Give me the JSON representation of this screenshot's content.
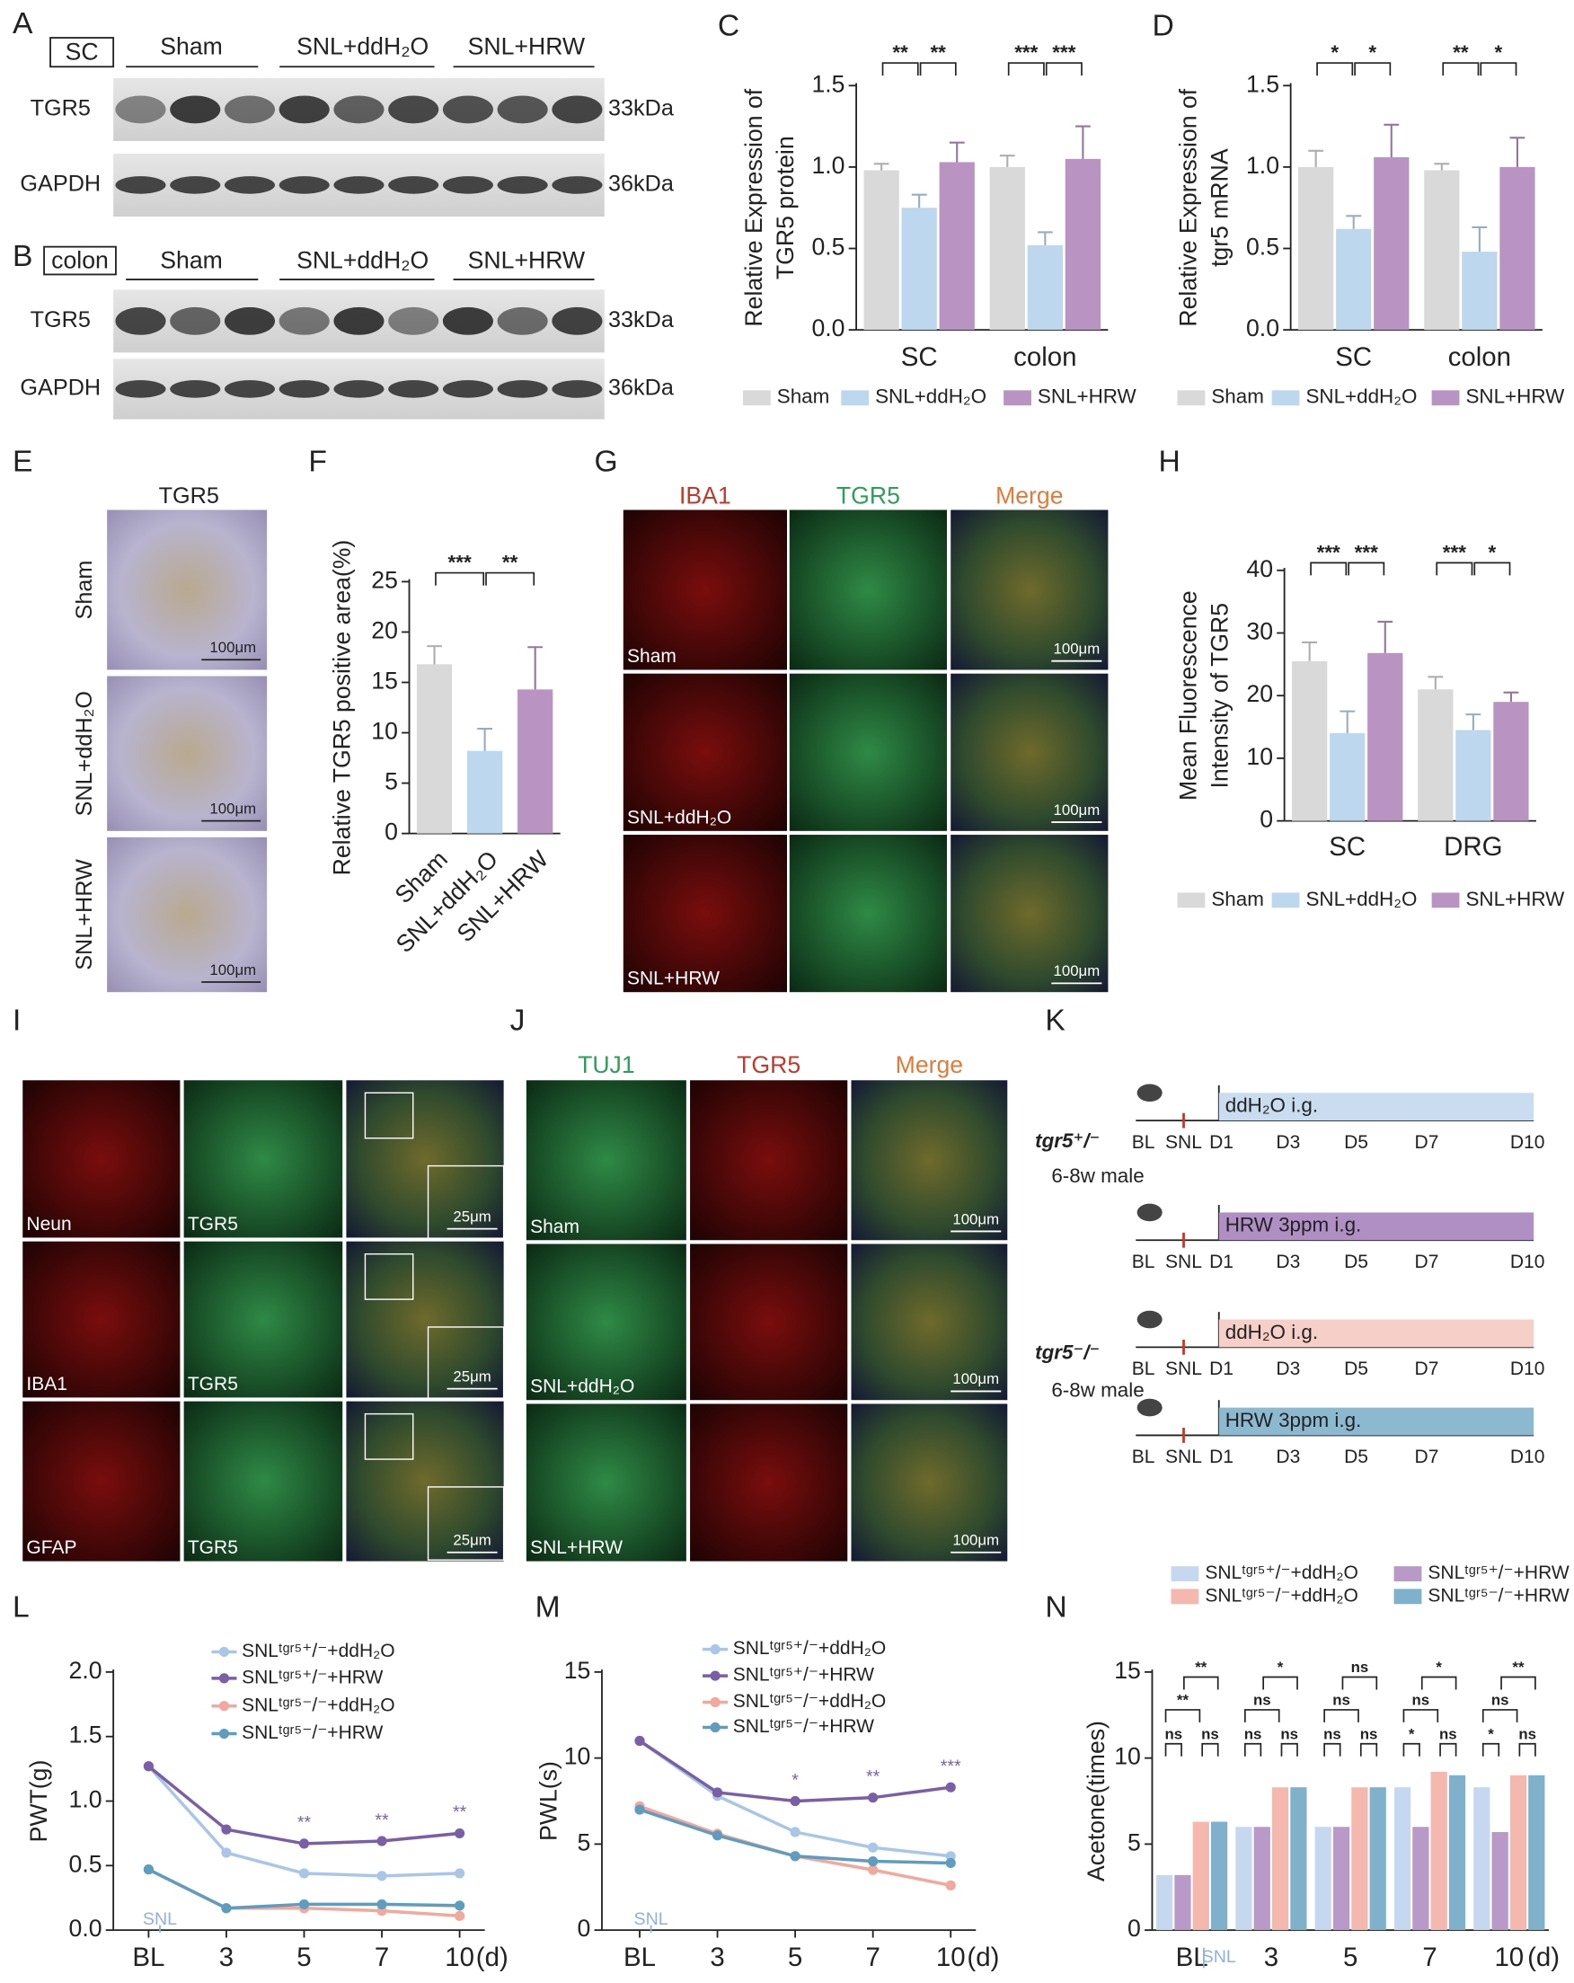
{
  "blots": [
    {
      "panel": "A",
      "tissue": "SC",
      "groups": [
        "Sham",
        "SNL+ddH₂O",
        "SNL+HRW"
      ],
      "rows": [
        {
          "protein": "TGR5",
          "size": "33kDa"
        },
        {
          "protein": "GAPDH",
          "size": "36kDa"
        }
      ]
    },
    {
      "panel": "B",
      "tissue": "colon",
      "groups": [
        "Sham",
        "SNL+ddH₂O",
        "SNL+HRW"
      ],
      "rows": [
        {
          "protein": "TGR5",
          "size": "33kDa"
        },
        {
          "protein": "GAPDH",
          "size": "36kDa"
        }
      ]
    }
  ],
  "ihc": {
    "panel": "E",
    "title": "TGR5",
    "rows": [
      "Sham",
      "SNL+ddH₂O",
      "SNL+HRW"
    ],
    "scale": "100μm"
  },
  "if_g": {
    "panel": "G",
    "columns": [
      "IBA1",
      "TGR5",
      "Merge"
    ],
    "rows": [
      "Sham",
      "SNL+ddH₂O",
      "SNL+HRW"
    ],
    "scale": "100μm"
  },
  "if_i": {
    "panel": "I",
    "rows": [
      {
        "markers": [
          "Neun",
          "TGR5"
        ]
      },
      {
        "markers": [
          "IBA1",
          "TGR5"
        ]
      },
      {
        "markers": [
          "GFAP",
          "TGR5"
        ]
      }
    ],
    "scale": "25μm"
  },
  "if_j": {
    "panel": "J",
    "columns": [
      "TUJ1",
      "TGR5",
      "Merge"
    ],
    "rows": [
      "Sham",
      "SNL+ddH₂O",
      "SNL+HRW"
    ],
    "scale": "100μm"
  },
  "timeline": {
    "panel": "K",
    "ticks": [
      "BL",
      "SNL",
      "D1",
      "D3",
      "D5",
      "D7",
      "D10"
    ],
    "cohorts": [
      {
        "genotype": "tgr5⁺/⁻",
        "age": "6-8w  male",
        "arms": [
          {
            "label": "ddH₂O i.g.",
            "color": "#c9dcf0"
          },
          {
            "label": "HRW 3ppm i.g.",
            "color": "#b08fc4"
          }
        ]
      },
      {
        "genotype": "tgr5⁻/⁻",
        "age": "6-8w  male",
        "arms": [
          {
            "label": "ddH₂O i.g.",
            "color": "#f6cfc8"
          },
          {
            "label": "HRW 3ppm  i.g.",
            "color": "#8db9d0"
          }
        ]
      }
    ]
  },
  "chart_data": [
    {
      "type": "bar",
      "panel": "C",
      "ylabel": [
        "Relative Expression of",
        "TGR5 protein"
      ],
      "categories": [
        "SC",
        "colon"
      ],
      "series": [
        {
          "name": "Sham",
          "color": "#d9d9d9",
          "values": [
            0.98,
            1.0
          ],
          "errors": [
            0.04,
            0.07
          ]
        },
        {
          "name": "SNL+ddH₂O",
          "color": "#bdd7ee",
          "values": [
            0.75,
            0.52
          ],
          "errors": [
            0.08,
            0.08
          ]
        },
        {
          "name": "SNL+HRW",
          "color": "#b994c3",
          "values": [
            1.03,
            1.05
          ],
          "errors": [
            0.12,
            0.2
          ]
        }
      ],
      "ylim": [
        0,
        1.5
      ],
      "yticks": [
        {
          "value": 0,
          "label": "0.0"
        },
        0.5,
        {
          "value": 1,
          "label": "1.0"
        },
        1.5
      ],
      "significance": [
        {
          "text": "**",
          "group": 0,
          "pair": [
            0,
            1
          ]
        },
        {
          "text": "**",
          "group": 0,
          "pair": [
            1,
            2
          ]
        },
        {
          "text": "***",
          "group": 1,
          "pair": [
            0,
            1
          ]
        },
        {
          "text": "***",
          "group": 1,
          "pair": [
            1,
            2
          ]
        }
      ]
    },
    {
      "type": "bar",
      "panel": "D",
      "ylabel": [
        "Relative Expression of",
        "tgr5 mRNA"
      ],
      "categories": [
        "SC",
        "colon"
      ],
      "series": [
        {
          "name": "Sham",
          "color": "#d9d9d9",
          "values": [
            1.0,
            0.98
          ],
          "errors": [
            0.1,
            0.04
          ]
        },
        {
          "name": "SNL+ddH₂O",
          "color": "#bdd7ee",
          "values": [
            0.62,
            0.48
          ],
          "errors": [
            0.08,
            0.15
          ]
        },
        {
          "name": "SNL+HRW",
          "color": "#b994c3",
          "values": [
            1.06,
            1.0
          ],
          "errors": [
            0.2,
            0.18
          ]
        }
      ],
      "ylim": [
        0,
        1.5
      ],
      "yticks": [
        {
          "value": 0,
          "label": "0.0"
        },
        0.5,
        {
          "value": 1,
          "label": "1.0"
        },
        1.5
      ],
      "significance": [
        {
          "text": "*",
          "group": 0,
          "pair": [
            0,
            1
          ]
        },
        {
          "text": "*",
          "group": 0,
          "pair": [
            1,
            2
          ]
        },
        {
          "text": "**",
          "group": 1,
          "pair": [
            0,
            1
          ]
        },
        {
          "text": "*",
          "group": 1,
          "pair": [
            1,
            2
          ]
        }
      ]
    },
    {
      "type": "bar",
      "panel": "F",
      "ylabel": [
        "Relative TGR5 positive area(%)"
      ],
      "categories": [
        "Sham",
        "SNL+ddH₂O",
        "SNL+HRW"
      ],
      "values": [
        16.8,
        8.2,
        14.3
      ],
      "errors": [
        1.8,
        2.2,
        4.2
      ],
      "colors": [
        "#d9d9d9",
        "#bdd7ee",
        "#b994c3"
      ],
      "ylim": [
        0,
        25
      ],
      "yticks": [
        0,
        5,
        10,
        15,
        20,
        25
      ],
      "significance": [
        {
          "text": "***",
          "pair": [
            0,
            1
          ]
        },
        {
          "text": "**",
          "pair": [
            1,
            2
          ]
        }
      ]
    },
    {
      "type": "bar",
      "panel": "H",
      "ylabel": [
        "Mean Fluorescence",
        "Intensity of TGR5"
      ],
      "categories": [
        "SC",
        "DRG"
      ],
      "series": [
        {
          "name": "Sham",
          "color": "#d9d9d9",
          "values": [
            25.5,
            21
          ],
          "errors": [
            3,
            2
          ]
        },
        {
          "name": "SNL+ddH₂O",
          "color": "#bdd7ee",
          "values": [
            14,
            14.5
          ],
          "errors": [
            3.5,
            2.5
          ]
        },
        {
          "name": "SNL+HRW",
          "color": "#b994c3",
          "values": [
            26.8,
            19
          ],
          "errors": [
            5,
            1.5
          ]
        }
      ],
      "ylim": [
        0,
        40
      ],
      "yticks": [
        0,
        10,
        20,
        30,
        40
      ],
      "significance": [
        {
          "text": "***",
          "group": 0,
          "pair": [
            0,
            1
          ]
        },
        {
          "text": "***",
          "group": 0,
          "pair": [
            1,
            2
          ]
        },
        {
          "text": "***",
          "group": 1,
          "pair": [
            0,
            1
          ]
        },
        {
          "text": "*",
          "group": 1,
          "pair": [
            1,
            2
          ]
        }
      ]
    },
    {
      "type": "line",
      "panel": "L",
      "ylabel": [
        "PWT(g)"
      ],
      "categories": [
        "BL",
        "3",
        "5",
        "7",
        "10"
      ],
      "xunit": "(d)",
      "marker_label": "SNL",
      "series": [
        {
          "name": "SNLᵗᵍʳ⁵⁺/⁻+ddH₂O",
          "color": "#a9c6e8",
          "values": [
            1.27,
            0.6,
            0.44,
            0.42,
            0.44
          ]
        },
        {
          "name": "SNLᵗᵍʳ⁵⁺/⁻+HRW",
          "color": "#7a5fa6",
          "values": [
            1.27,
            0.78,
            0.67,
            0.69,
            0.75
          ]
        },
        {
          "name": "SNLᵗᵍʳ⁵⁻/⁻+ddH₂O",
          "color": "#f2a89c",
          "values": [
            0.47,
            0.17,
            0.17,
            0.15,
            0.11
          ]
        },
        {
          "name": "SNLᵗᵍʳ⁵⁻/⁻+HRW",
          "color": "#5e9cc0",
          "values": [
            0.47,
            0.17,
            0.2,
            0.2,
            0.19
          ]
        }
      ],
      "ylim": [
        0,
        2
      ],
      "yticks": [
        {
          "value": 0,
          "label": "0.0"
        },
        0.5,
        {
          "value": 1,
          "label": "1.0"
        },
        1.5,
        {
          "value": 2,
          "label": "2.0"
        }
      ],
      "annotations": [
        {
          "text": "**",
          "series": 1,
          "index": 2
        },
        {
          "text": "**",
          "series": 1,
          "index": 3
        },
        {
          "text": "**",
          "series": 1,
          "index": 4
        }
      ]
    },
    {
      "type": "line",
      "panel": "M",
      "ylabel": [
        "PWL(s)"
      ],
      "categories": [
        "BL",
        "3",
        "5",
        "7",
        "10"
      ],
      "xunit": "(d)",
      "marker_label": "SNL",
      "series": [
        {
          "name": "SNLᵗᵍʳ⁵⁺/⁻+ddH₂O",
          "color": "#a9c6e8",
          "values": [
            11,
            7.8,
            5.7,
            4.8,
            4.3
          ]
        },
        {
          "name": "SNLᵗᵍʳ⁵⁺/⁻+HRW",
          "color": "#7a5fa6",
          "values": [
            11,
            8,
            7.5,
            7.7,
            8.3
          ]
        },
        {
          "name": "SNLᵗᵍʳ⁵⁻/⁻+ddH₂O",
          "color": "#f2a89c",
          "values": [
            7.2,
            5.6,
            4.3,
            3.5,
            2.6
          ]
        },
        {
          "name": "SNLᵗᵍʳ⁵⁻/⁻+HRW",
          "color": "#5e9cc0",
          "values": [
            7.0,
            5.5,
            4.3,
            4.0,
            3.9
          ]
        }
      ],
      "ylim": [
        0,
        15
      ],
      "yticks": [
        0,
        5,
        10,
        15
      ],
      "annotations": [
        {
          "text": "*",
          "series": 1,
          "index": 2
        },
        {
          "text": "**",
          "series": 1,
          "index": 3
        },
        {
          "text": "***",
          "series": 1,
          "index": 4
        }
      ]
    },
    {
      "type": "bar",
      "panel": "N",
      "ylabel": [
        "Acetone(times)"
      ],
      "categories": [
        "BL",
        "3",
        "5",
        "7",
        "10"
      ],
      "xunit": "(d)",
      "marker_label": "SNL",
      "series": [
        {
          "name": "SNLᵗᵍʳ⁵⁺/⁻+ddH₂O",
          "color": "#c5d8ef",
          "values": [
            3.2,
            6,
            6,
            8.3,
            8.3
          ]
        },
        {
          "name": "SNLᵗᵍʳ⁵⁺/⁻+HRW",
          "color": "#b999c7",
          "values": [
            3.2,
            6,
            6,
            6,
            5.7
          ]
        },
        {
          "name": "SNLᵗᵍʳ⁵⁻/⁻+ddH₂O",
          "color": "#f4b8ae",
          "values": [
            6.3,
            8.3,
            8.3,
            9.2,
            9
          ]
        },
        {
          "name": "SNLᵗᵍʳ⁵⁻/⁻+HRW",
          "color": "#7fb0cc",
          "values": [
            6.3,
            8.3,
            8.3,
            9,
            9
          ]
        }
      ],
      "ylim": [
        0,
        15
      ],
      "yticks": [
        0,
        5,
        10,
        15
      ],
      "significance": [
        {
          "text": "ns",
          "group": 0,
          "pair": [
            0,
            1
          ]
        },
        {
          "text": "ns",
          "group": 0,
          "pair": [
            2,
            3
          ]
        },
        {
          "text": "**",
          "group": 0,
          "pair": [
            0,
            2
          ]
        },
        {
          "text": "**",
          "group": 0,
          "pair": [
            1,
            3
          ]
        },
        {
          "text": "ns",
          "group": 1,
          "pair": [
            0,
            1
          ]
        },
        {
          "text": "ns",
          "group": 1,
          "pair": [
            2,
            3
          ]
        },
        {
          "text": "ns",
          "group": 1,
          "pair": [
            0,
            2
          ]
        },
        {
          "text": "*",
          "group": 1,
          "pair": [
            1,
            3
          ]
        },
        {
          "text": "ns",
          "group": 2,
          "pair": [
            0,
            1
          ]
        },
        {
          "text": "ns",
          "group": 2,
          "pair": [
            2,
            3
          ]
        },
        {
          "text": "ns",
          "group": 2,
          "pair": [
            0,
            2
          ]
        },
        {
          "text": "ns",
          "group": 2,
          "pair": [
            1,
            3
          ]
        },
        {
          "text": "*",
          "group": 3,
          "pair": [
            0,
            1
          ]
        },
        {
          "text": "ns",
          "group": 3,
          "pair": [
            2,
            3
          ]
        },
        {
          "text": "ns",
          "group": 3,
          "pair": [
            0,
            2
          ]
        },
        {
          "text": "*",
          "group": 3,
          "pair": [
            1,
            3
          ]
        },
        {
          "text": "*",
          "group": 4,
          "pair": [
            0,
            1
          ]
        },
        {
          "text": "ns",
          "group": 4,
          "pair": [
            2,
            3
          ]
        },
        {
          "text": "ns",
          "group": 4,
          "pair": [
            0,
            2
          ]
        },
        {
          "text": "**",
          "group": 4,
          "pair": [
            1,
            3
          ]
        }
      ]
    }
  ]
}
